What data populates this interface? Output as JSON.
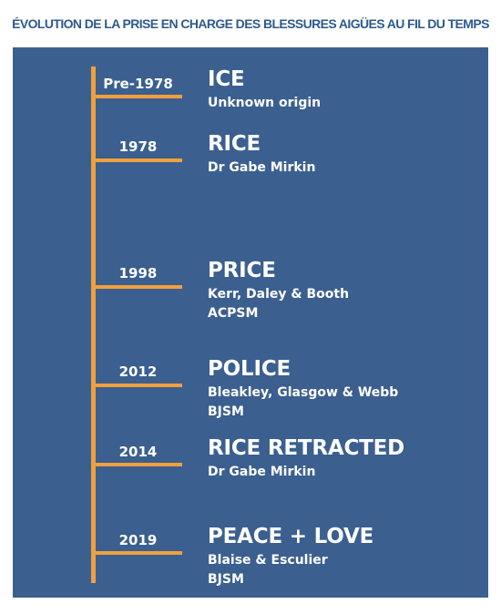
{
  "title": "ÉVOLUTION DE LA PRISE EN CHARGE DES BLESSURES AIGÜES AU FIL DU TEMPS",
  "colors": {
    "panel": "#3b5f8f",
    "accent": "#f2a03d",
    "title": "#2d5a8e",
    "text": "#ffffff"
  },
  "entries": [
    {
      "year": "Pre-1978",
      "name": "ICE",
      "source": "Unknown origin",
      "journal": ""
    },
    {
      "year": "1978",
      "name": "RICE",
      "source": "Dr Gabe Mirkin",
      "journal": ""
    },
    {
      "year": "1998",
      "name": "PRICE",
      "source": "Kerr, Daley & Booth",
      "journal": "ACPSM"
    },
    {
      "year": "2012",
      "name": "POLICE",
      "source": "Bleakley, Glasgow & Webb",
      "journal": "BJSM"
    },
    {
      "year": "2014",
      "name": "RICE RETRACTED",
      "source": "Dr Gabe Mirkin",
      "journal": ""
    },
    {
      "year": "2019",
      "name": "PEACE + LOVE",
      "source": "Blaise & Esculier",
      "journal": "BJSM"
    }
  ]
}
